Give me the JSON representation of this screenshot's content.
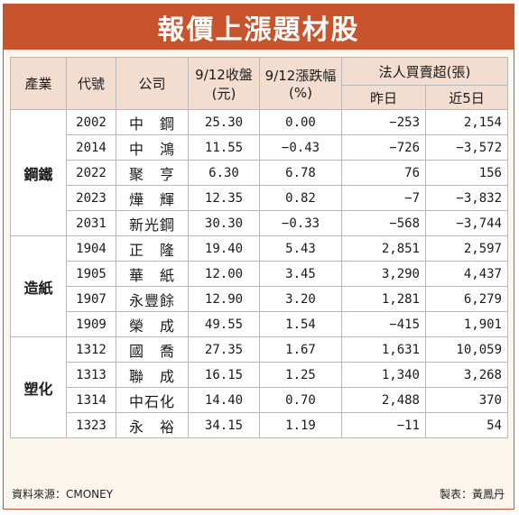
{
  "title": "報價上漲題材股",
  "headers": {
    "industry": "產業",
    "code": "代號",
    "company": "公司",
    "close_line1": "9/12收盤",
    "close_line2": "(元)",
    "change_line1": "9/12漲跌幅",
    "change_line2": "(%)",
    "inst_top": "法人買賣超(張)",
    "inst_yesterday": "昨日",
    "inst_5days": "近5日"
  },
  "groups": [
    {
      "industry": "鋼鐵",
      "rows": [
        {
          "code": "2002",
          "company": "中鋼",
          "close": "25.30",
          "change": "0.00",
          "yesterday": "-253",
          "five_day": "2,154"
        },
        {
          "code": "2014",
          "company": "中鴻",
          "close": "11.55",
          "change": "-0.43",
          "yesterday": "-726",
          "five_day": "-3,572"
        },
        {
          "code": "2022",
          "company": "聚亨",
          "close": "6.30",
          "change": "6.78",
          "yesterday": "76",
          "five_day": "156"
        },
        {
          "code": "2023",
          "company": "燁輝",
          "close": "12.35",
          "change": "0.82",
          "yesterday": "-7",
          "five_day": "-3,832"
        },
        {
          "code": "2031",
          "company": "新光鋼",
          "close": "30.30",
          "change": "-0.33",
          "yesterday": "-568",
          "five_day": "-3,744"
        }
      ]
    },
    {
      "industry": "造紙",
      "rows": [
        {
          "code": "1904",
          "company": "正隆",
          "close": "19.40",
          "change": "5.43",
          "yesterday": "2,851",
          "five_day": "2,597"
        },
        {
          "code": "1905",
          "company": "華紙",
          "close": "12.00",
          "change": "3.45",
          "yesterday": "3,290",
          "five_day": "4,437"
        },
        {
          "code": "1907",
          "company": "永豐餘",
          "close": "12.90",
          "change": "3.20",
          "yesterday": "1,281",
          "five_day": "6,279"
        },
        {
          "code": "1909",
          "company": "榮成",
          "close": "49.55",
          "change": "1.54",
          "yesterday": "-415",
          "five_day": "1,901"
        }
      ]
    },
    {
      "industry": "塑化",
      "rows": [
        {
          "code": "1312",
          "company": "國喬",
          "close": "27.35",
          "change": "1.67",
          "yesterday": "1,631",
          "five_day": "10,059"
        },
        {
          "code": "1313",
          "company": "聯成",
          "close": "16.15",
          "change": "1.25",
          "yesterday": "1,340",
          "five_day": "3,268"
        },
        {
          "code": "1314",
          "company": "中石化",
          "close": "14.40",
          "change": "0.70",
          "yesterday": "2,488",
          "five_day": "370"
        },
        {
          "code": "1323",
          "company": "永裕",
          "close": "34.15",
          "change": "1.19",
          "yesterday": "-11",
          "five_day": "54"
        }
      ]
    }
  ],
  "footer": {
    "source": "資料來源：CMONEY",
    "credit": "製表：黃鳳丹"
  },
  "colors": {
    "banner": "#c8542e",
    "header_bg": "#f3ddd0",
    "frame_bg": "#fdf6ef"
  }
}
